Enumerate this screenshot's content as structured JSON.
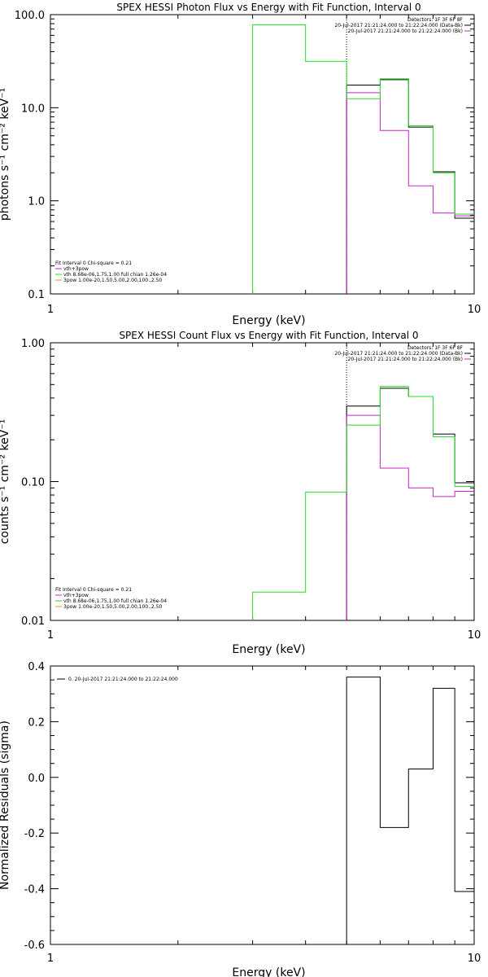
{
  "chart_data": [
    {
      "type": "line",
      "title": "SPEX HESSI Photon Flux vs Energy with Fit Function, Interval 0",
      "xlabel": "Energy (keV)",
      "ylabel": "photons s⁻¹ cm⁻² keV⁻¹",
      "xscale": "log",
      "yscale": "log",
      "xlim": [
        1,
        10
      ],
      "ylim": [
        0.1,
        100
      ],
      "x_ticks": [
        1,
        10
      ],
      "x_tick_labels": [
        "1",
        "10"
      ],
      "y_ticks": [
        0.1,
        1,
        10,
        100
      ],
      "y_tick_labels": [
        "0.1",
        "1.0",
        "10.0",
        "100.0"
      ],
      "fit_interval_marker": 5,
      "legend_top": [
        "Detectors: 1F 3F 6F 8F",
        "20-Jul-2017 21:21:24.000 to 21:22:24.000 (Data-Bk)",
        "20-Jul-2017 21:21:24.000 to 21:22:24.000 (Bk)"
      ],
      "legend_bottom": [
        "Fit Interval 0   Chi-square = 0.21",
        "vth+3pow",
        "vth 8.68e-06,1.75,1.00  full chian 1.26e-04",
        "3pow 1.00e-20,1.50,5.00,2.00,100.,2.50"
      ],
      "series": [
        {
          "name": "20-Jul-2017 21:21:24.000 to 21:22:24.000 (Data-Bk)",
          "color": "#000000",
          "edges": [
            5,
            6,
            7,
            8,
            9,
            10
          ],
          "values": [
            17.5,
            20,
            6.2,
            2.05,
            0.65
          ]
        },
        {
          "name": "20-Jul-2017 21:21:24.000 to 21:22:24.000 (Bk)",
          "color": "#cc22cc",
          "edges": [
            5,
            6,
            7,
            8,
            9,
            10
          ],
          "values": [
            14.5,
            5.7,
            1.45,
            0.74,
            0.69
          ]
        },
        {
          "name": "vth+3pow",
          "color": "#22dd22",
          "edges": [
            3,
            4,
            5,
            6,
            7,
            8,
            9,
            10
          ],
          "values": [
            78,
            31.5,
            12.5,
            20.5,
            6.4,
            2.0,
            0.72
          ]
        }
      ]
    },
    {
      "type": "line",
      "title": "SPEX HESSI Count Flux vs Energy with Fit Function, Interval 0",
      "xlabel": "Energy (keV)",
      "ylabel": "counts s⁻¹ cm⁻² keV⁻¹",
      "xscale": "log",
      "yscale": "log",
      "xlim": [
        1,
        10
      ],
      "ylim": [
        0.01,
        1
      ],
      "x_ticks": [
        1,
        10
      ],
      "x_tick_labels": [
        "1",
        "10"
      ],
      "y_ticks": [
        0.01,
        0.1,
        1
      ],
      "y_tick_labels": [
        "0.01",
        "0.10",
        "1.00"
      ],
      "fit_interval_marker": 5,
      "legend_top": [
        "Detectors: 1F 3F 6F 8F",
        "20-Jul-2017 21:21:24.000 to 21:22:24.000 (Data-Bk)",
        "20-Jul-2017 21:21:24.000 to 21:22:24.000 (Bk)"
      ],
      "legend_bottom": [
        "Fit Interval 0   Chi-square = 0.21",
        "vth+3pow",
        "vth 8.68e-06,1.75,1.00  full chian 1.26e-04",
        "3pow 1.00e-20,1.50,5.00,2.00,100.,2.50"
      ],
      "series": [
        {
          "name": "20-Jul-2017 21:21:24.000 to 21:22:24.000 (Data-Bk)",
          "color": "#000000",
          "edges": [
            5,
            6,
            7,
            8,
            9,
            10
          ],
          "values": [
            0.35,
            0.47,
            0.41,
            0.22,
            0.098
          ]
        },
        {
          "name": "20-Jul-2017 21:21:24.000 to 21:22:24.000 (Bk)",
          "color": "#cc22cc",
          "edges": [
            5,
            6,
            7,
            8,
            9,
            10
          ],
          "values": [
            0.3,
            0.125,
            0.09,
            0.078,
            0.085
          ]
        },
        {
          "name": "vth+3pow",
          "color": "#22dd22",
          "edges": [
            3,
            4,
            5,
            6,
            7,
            8,
            9,
            10
          ],
          "values": [
            0.016,
            0.084,
            0.255,
            0.485,
            0.41,
            0.21,
            0.092
          ]
        }
      ]
    },
    {
      "type": "line",
      "title": "",
      "xlabel": "Energy (keV)",
      "ylabel": "Normalized Residuals (sigma)",
      "xscale": "log",
      "yscale": "linear",
      "xlim": [
        1,
        10
      ],
      "ylim": [
        -0.6,
        0.4
      ],
      "x_ticks": [
        1,
        10
      ],
      "x_tick_labels": [
        "1",
        "10"
      ],
      "y_ticks": [
        -0.6,
        -0.4,
        -0.2,
        0,
        0.2,
        0.4
      ],
      "y_tick_labels": [
        "-0.6",
        "-0.4",
        "-0.2",
        "0.0",
        "0.2",
        "0.4"
      ],
      "legend": [
        "0. 20-Jul-2017 21:21:24.000 to 21:22:24.000"
      ],
      "series": [
        {
          "name": "0. 20-Jul-2017 21:21:24.000 to 21:22:24.000",
          "color": "#000000",
          "edges": [
            5,
            6,
            7,
            8,
            9,
            10
          ],
          "values": [
            0.36,
            -0.18,
            0.03,
            0.32,
            -0.41
          ]
        }
      ]
    }
  ]
}
